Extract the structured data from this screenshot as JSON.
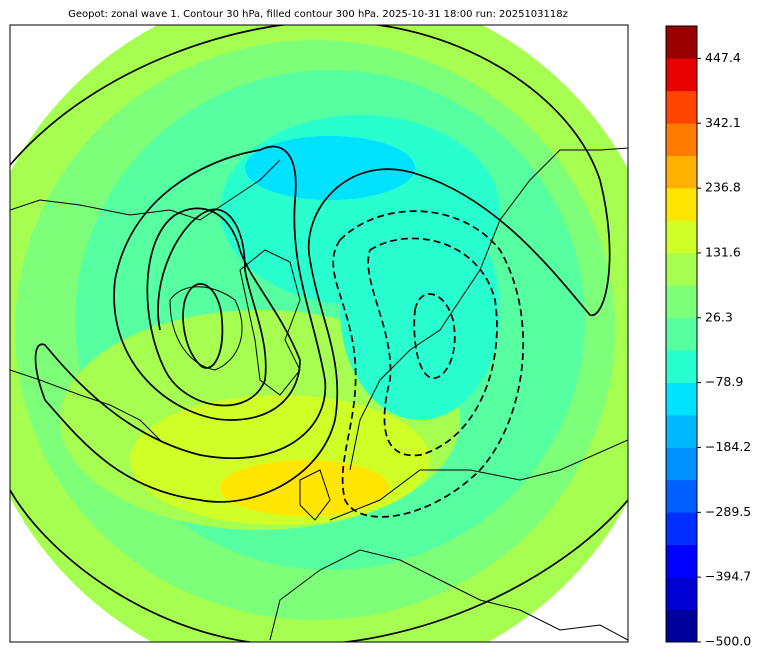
{
  "chart_data": {
    "type": "contour-map",
    "title": "Geopot: zonal wave 1. Contour 30 hPa, filled contour 300 hPa. 2025-10-31 18:00 run: 2025103118z",
    "colorbar": {
      "lim": [
        -500.0,
        500.0
      ],
      "colors": [
        "#00009b",
        "#0000d2",
        "#0000ff",
        "#0030ff",
        "#0060ff",
        "#0090ff",
        "#00b8ff",
        "#00e2ff",
        "#29ffce",
        "#56ffa0",
        "#7dff7a",
        "#a6ff50",
        "#d0ff28",
        "#ffe600",
        "#ffb000",
        "#ff7c00",
        "#ff4400",
        "#e80000",
        "#9b0000"
      ],
      "ticks": [
        {
          "value": -500.0,
          "label": "−500.0"
        },
        {
          "value": -394.7,
          "label": "−394.7"
        },
        {
          "value": -289.5,
          "label": "−289.5"
        },
        {
          "value": -184.2,
          "label": "−184.2"
        },
        {
          "value": -78.9,
          "label": "−78.9"
        },
        26.3,
        131.6,
        236.8,
        342.1,
        447.4
      ]
    }
  }
}
